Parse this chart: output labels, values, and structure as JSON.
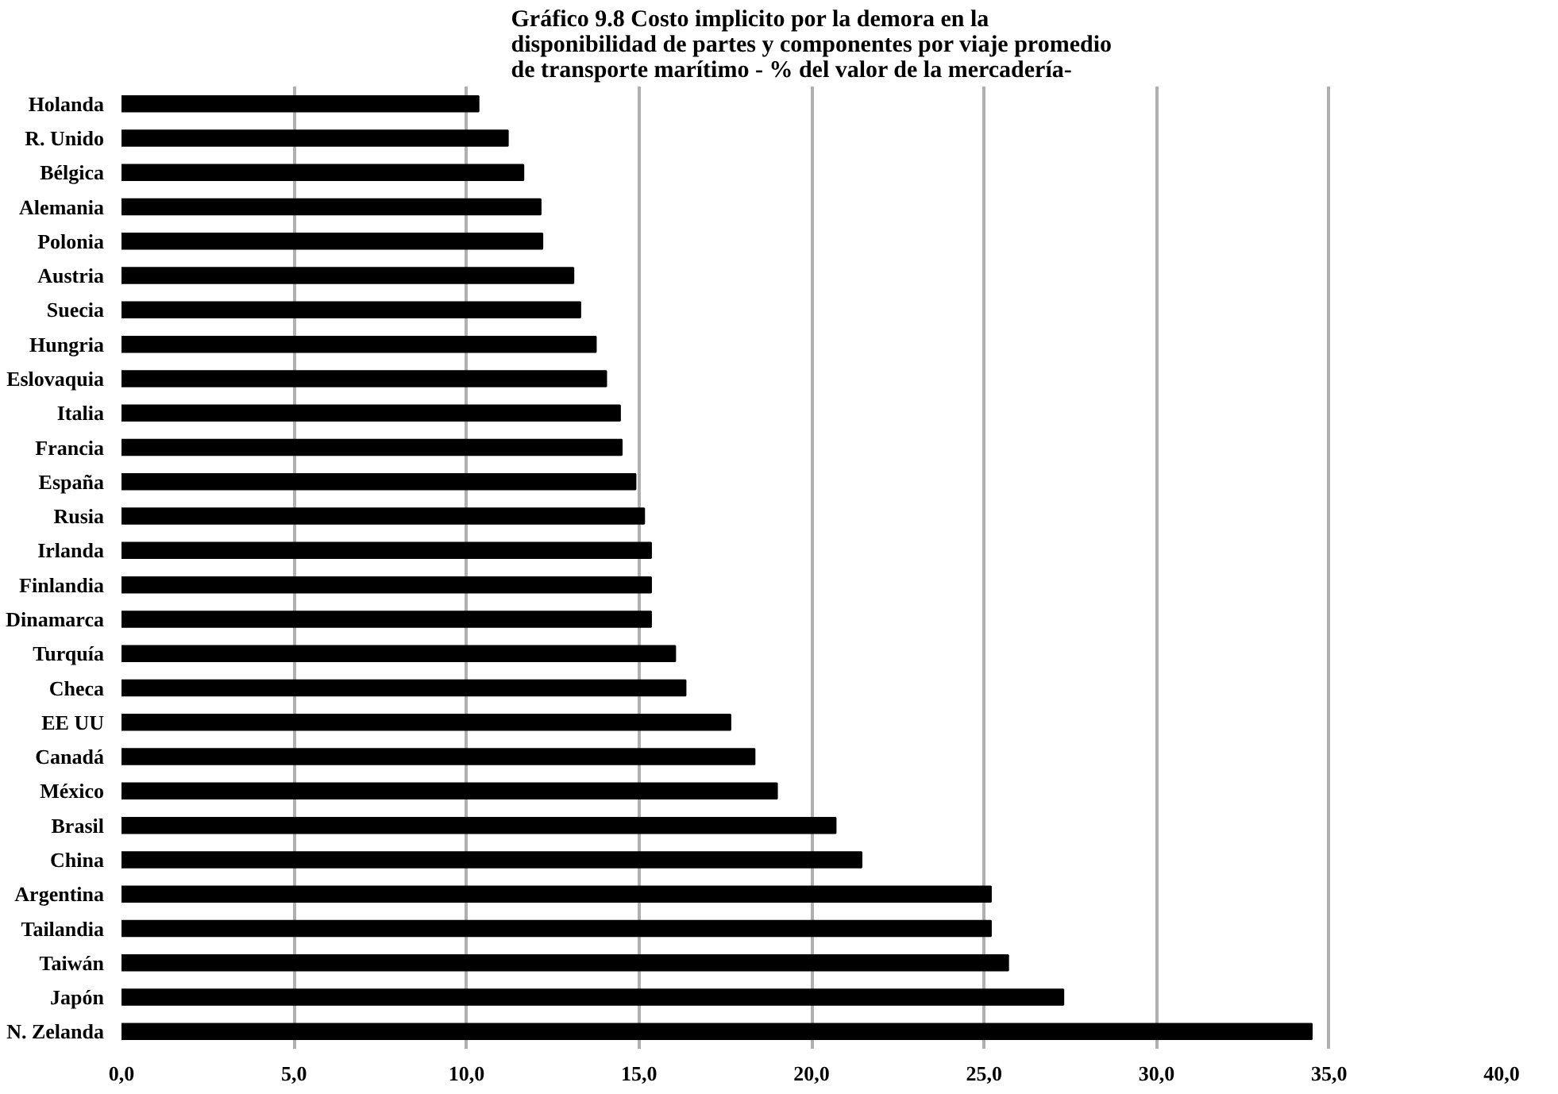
{
  "chart_data": {
    "type": "bar",
    "orientation": "horizontal",
    "title": "Gráfico 9.8 Costo implicito por la demora en la\ndisponibilidad de partes y componentes por viaje promedio\nde transporte marítimo - % del valor de la mercadería-",
    "categories": [
      "Holanda",
      "R. Unido",
      "Bélgica",
      "Alemania",
      "Polonia",
      "Austria",
      "Suecia",
      "Hungria",
      "Eslovaquia",
      "Italia",
      "Francia",
      "España",
      "Rusia",
      "Irlanda",
      "Finlandia",
      "Dinamarca",
      "Turquía",
      "Checa",
      "EE UU",
      "Canadá",
      "México",
      "Brasil",
      "China",
      "Argentina",
      "Tailandia",
      "Taiwán",
      "Japón",
      "N. Zelanda"
    ],
    "values": [
      10.35,
      11.2,
      11.65,
      12.15,
      12.2,
      13.1,
      13.3,
      13.75,
      14.05,
      14.45,
      14.5,
      14.9,
      15.15,
      15.35,
      15.35,
      15.35,
      16.05,
      16.35,
      17.65,
      18.35,
      19.0,
      20.7,
      21.45,
      25.2,
      25.2,
      25.7,
      27.3,
      34.5
    ],
    "color": "#000000",
    "xlim": [
      0,
      40
    ],
    "xticks": [
      {
        "value": 0,
        "label": "0,0"
      },
      {
        "value": 5,
        "label": "5,0"
      },
      {
        "value": 10,
        "label": "10,0"
      },
      {
        "value": 15,
        "label": "15,0"
      },
      {
        "value": 20,
        "label": "20,0"
      },
      {
        "value": 25,
        "label": "25,0"
      },
      {
        "value": 30,
        "label": "30,0"
      },
      {
        "value": 35,
        "label": "35,0"
      },
      {
        "value": 40,
        "label": "40,0"
      }
    ],
    "grid": "x"
  }
}
